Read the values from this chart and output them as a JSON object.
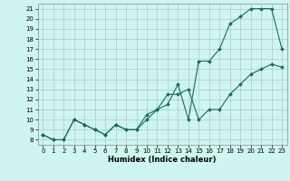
{
  "title": "",
  "xlabel": "Humidex (Indice chaleur)",
  "ylabel": "",
  "background_color": "#cff5f0",
  "grid_color": "#aacccc",
  "line_color": "#1a6b5a",
  "xlim": [
    -0.5,
    23.5
  ],
  "ylim": [
    7.5,
    21.5
  ],
  "yticks": [
    8,
    9,
    10,
    11,
    12,
    13,
    14,
    15,
    16,
    17,
    18,
    19,
    20,
    21
  ],
  "xticks": [
    0,
    1,
    2,
    3,
    4,
    5,
    6,
    7,
    8,
    9,
    10,
    11,
    12,
    13,
    14,
    15,
    16,
    17,
    18,
    19,
    20,
    21,
    22,
    23
  ],
  "line1_x": [
    0,
    1,
    2,
    3,
    4,
    5,
    6,
    7,
    8,
    9,
    10,
    11,
    12,
    13,
    14,
    15,
    16,
    17,
    18,
    19,
    20,
    21,
    22,
    23
  ],
  "line1_y": [
    8.5,
    8.0,
    8.0,
    10.0,
    9.5,
    9.0,
    8.5,
    9.5,
    9.0,
    9.0,
    10.0,
    11.0,
    11.5,
    13.5,
    10.0,
    15.8,
    15.8,
    17.0,
    19.5,
    20.2,
    21.0,
    21.0,
    21.0,
    17.0
  ],
  "line2_x": [
    0,
    1,
    2,
    3,
    4,
    5,
    6,
    7,
    8,
    9,
    10,
    11,
    12,
    13,
    14,
    15,
    16,
    17,
    18,
    19,
    20,
    21,
    22,
    23
  ],
  "line2_y": [
    8.5,
    8.0,
    8.0,
    10.0,
    9.5,
    9.0,
    8.5,
    9.5,
    9.0,
    9.0,
    10.5,
    11.0,
    12.5,
    12.5,
    13.0,
    10.0,
    11.0,
    11.0,
    12.5,
    13.5,
    14.5,
    15.0,
    15.5,
    15.2
  ],
  "figsize": [
    3.2,
    2.0
  ],
  "dpi": 100
}
